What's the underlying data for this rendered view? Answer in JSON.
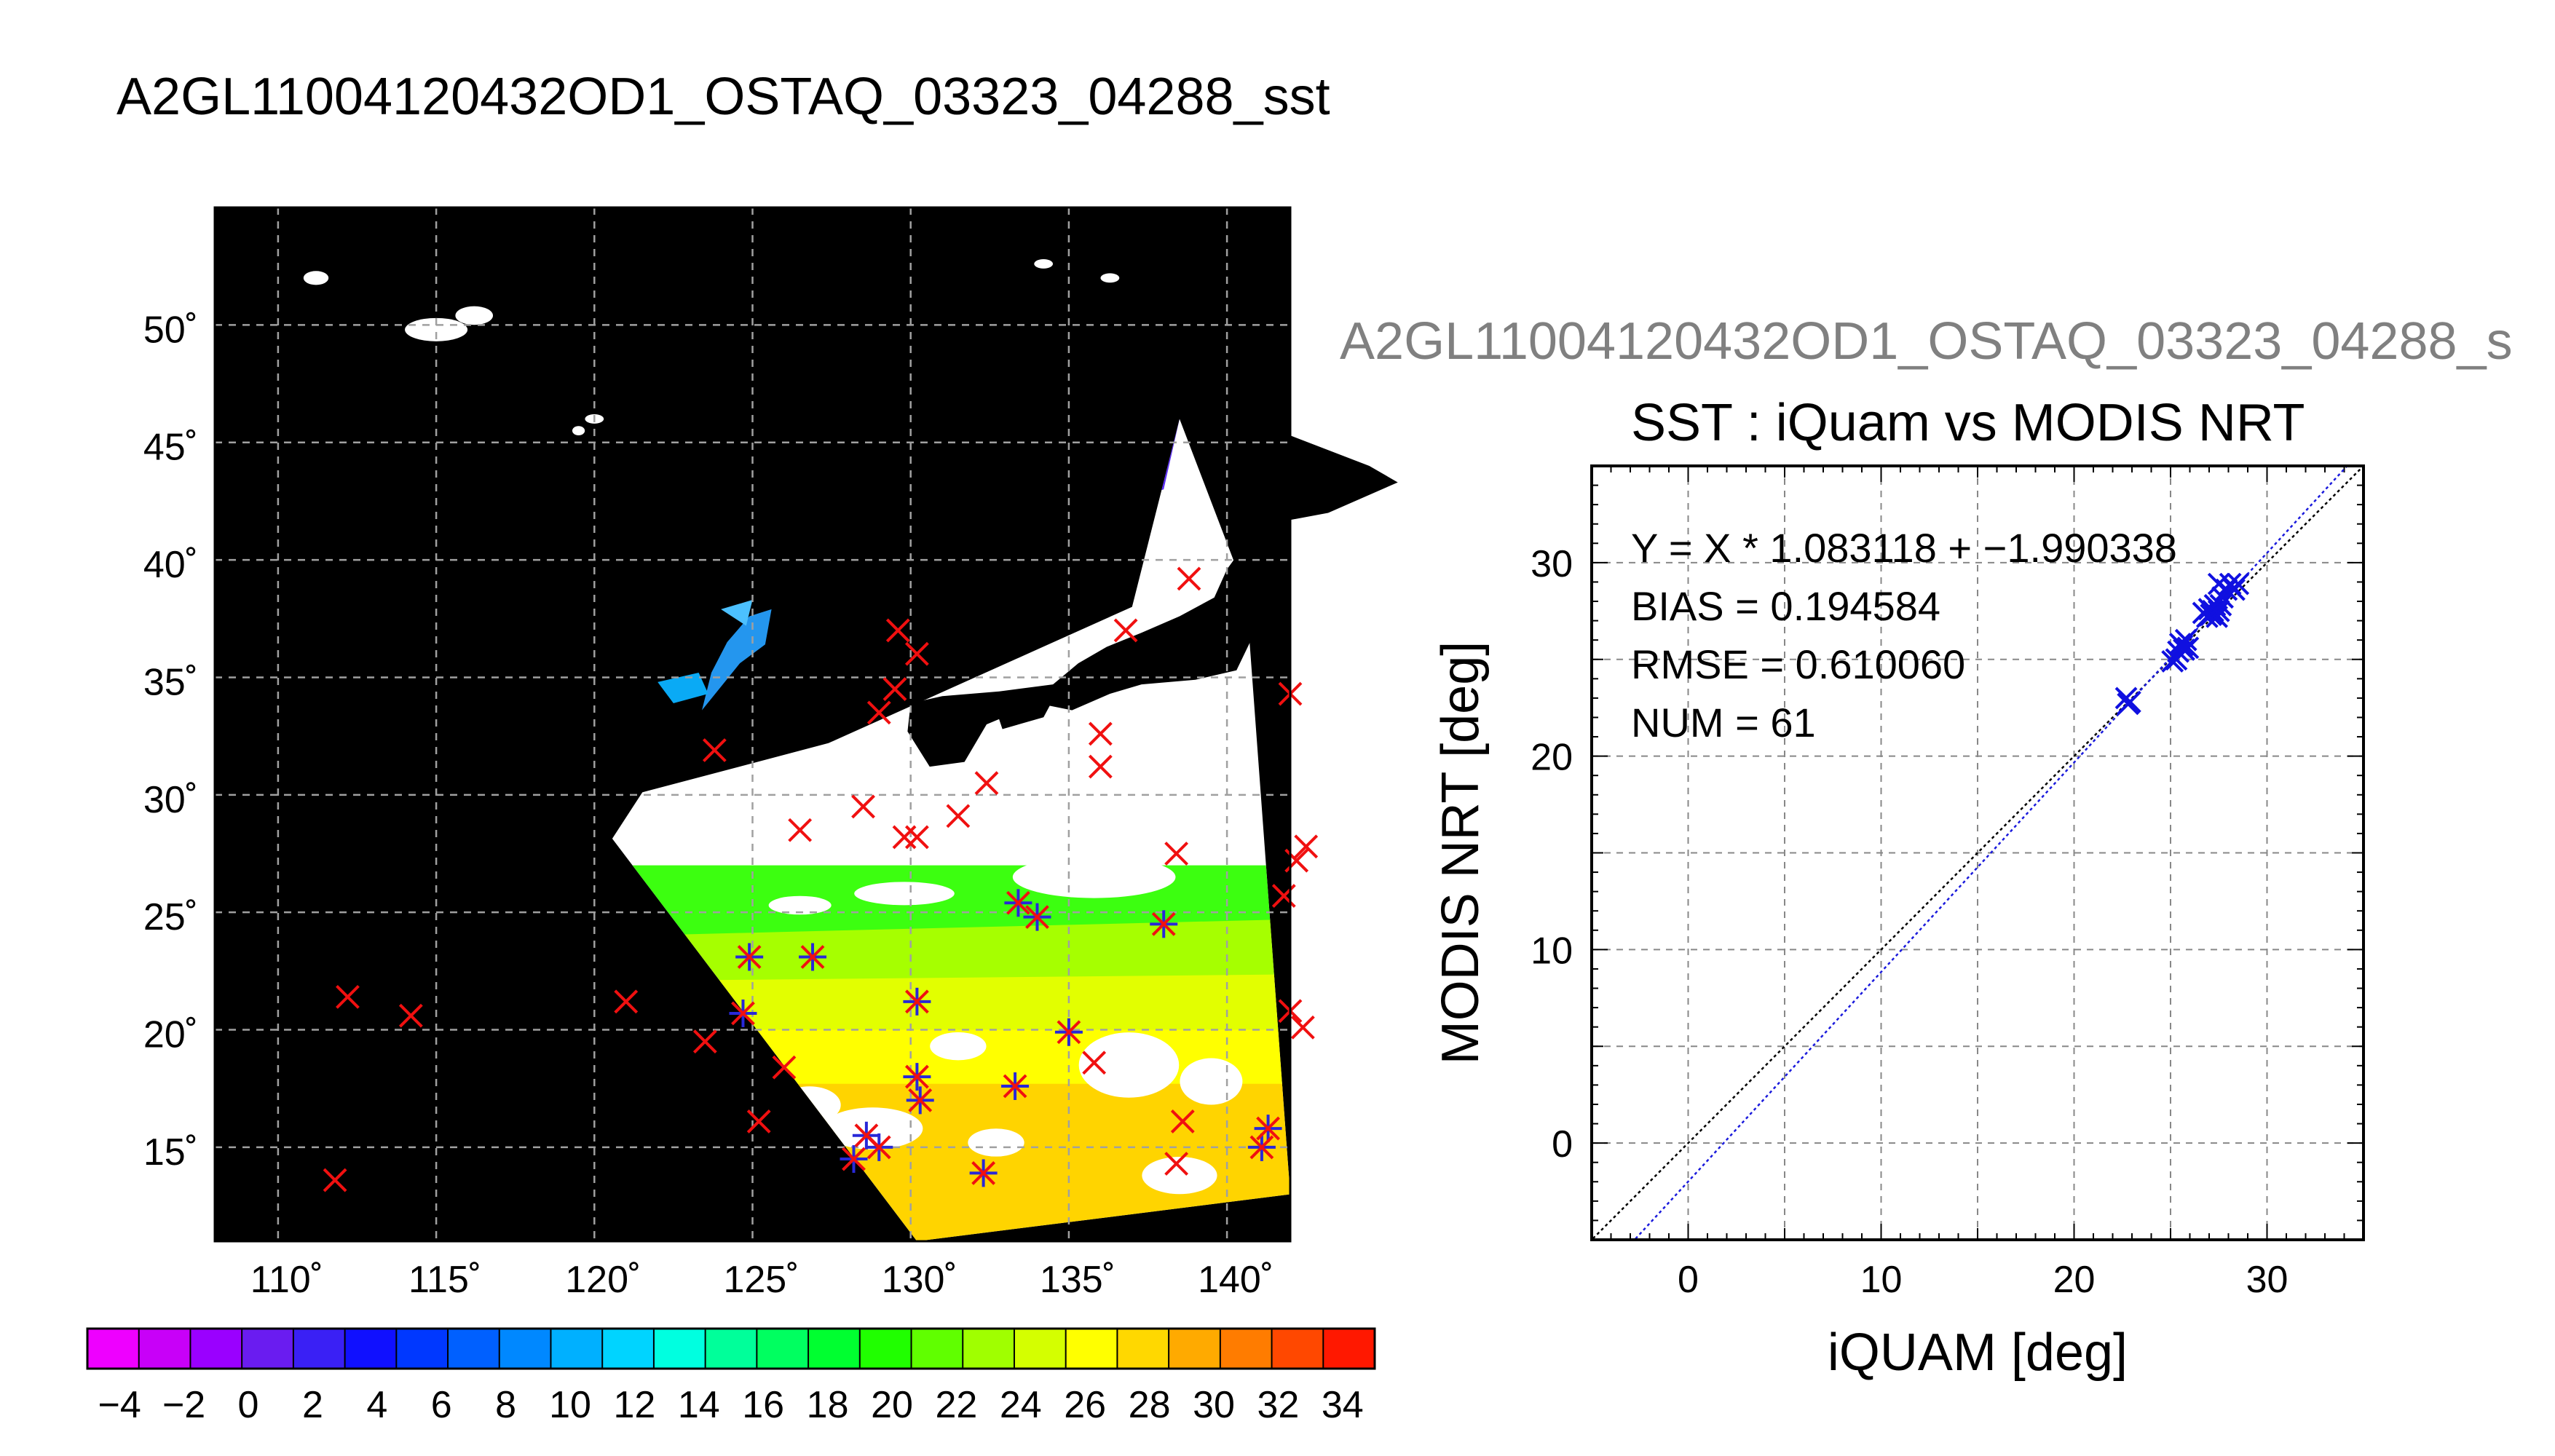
{
  "title": "A2GL11004120432OD1_OSTAQ_03323_04288_sst",
  "chart_data": [
    {
      "type": "map",
      "lon_range": [
        108,
        142
      ],
      "lat_range": [
        11,
        55
      ],
      "lon_ticks": [
        110,
        115,
        120,
        125,
        130,
        135,
        140
      ],
      "lat_ticks": [
        15,
        20,
        25,
        30,
        35,
        40,
        45,
        50
      ],
      "lon_tick_labels": [
        "110˚",
        "115˚",
        "120˚",
        "125˚",
        "130˚",
        "135˚",
        "140˚"
      ],
      "lat_tick_labels": [
        "15˚",
        "20˚",
        "25˚",
        "30˚",
        "35˚",
        "40˚",
        "45˚",
        "50˚"
      ],
      "grid": true,
      "colorbar": {
        "min": -5,
        "max": 35,
        "step": 2,
        "tick_labels": [
          "−4",
          "−2",
          "0",
          "2",
          "4",
          "6",
          "8",
          "10",
          "12",
          "14",
          "16",
          "18",
          "20",
          "22",
          "24",
          "26",
          "28",
          "30",
          "32",
          "34"
        ],
        "colors": [
          "#ee00ff",
          "#c800f8",
          "#9a00ff",
          "#6a1cf0",
          "#3a20f5",
          "#1010ff",
          "#0038ff",
          "#0060ff",
          "#0088ff",
          "#00b0ff",
          "#00d4ff",
          "#00ffe0",
          "#00ff9a",
          "#00ff60",
          "#00ff30",
          "#20ff00",
          "#60ff00",
          "#a0ff00",
          "#d4ff00",
          "#ffff00",
          "#ffd800",
          "#ffaa00",
          "#ff7c00",
          "#ff4800",
          "#ff1800"
        ]
      },
      "matchups_red_x": [
        [
          111.8,
          13.6
        ],
        [
          112.2,
          21.4
        ],
        [
          114.2,
          20.6
        ],
        [
          121.0,
          21.2
        ],
        [
          123.5,
          19.5
        ],
        [
          123.8,
          31.9
        ],
        [
          124.7,
          20.7
        ],
        [
          124.9,
          23.1
        ],
        [
          125.2,
          16.1
        ],
        [
          126.0,
          18.4
        ],
        [
          126.5,
          28.5
        ],
        [
          126.9,
          23.1
        ],
        [
          128.2,
          14.5
        ],
        [
          128.5,
          29.5
        ],
        [
          128.6,
          15.5
        ],
        [
          129.0,
          33.5
        ],
        [
          129.0,
          15.0
        ],
        [
          129.5,
          34.5
        ],
        [
          129.6,
          37.0
        ],
        [
          129.8,
          28.2
        ],
        [
          130.2,
          36.0
        ],
        [
          130.2,
          21.2
        ],
        [
          130.2,
          28.2
        ],
        [
          130.2,
          18.0
        ],
        [
          130.3,
          17.0
        ],
        [
          131.5,
          29.1
        ],
        [
          132.3,
          13.9
        ],
        [
          132.4,
          30.5
        ],
        [
          133.3,
          17.6
        ],
        [
          133.4,
          25.4
        ],
        [
          134.0,
          24.8
        ],
        [
          135.0,
          19.9
        ],
        [
          135.8,
          18.6
        ],
        [
          136.0,
          32.6
        ],
        [
          136.0,
          31.2
        ],
        [
          136.8,
          37.0
        ],
        [
          138.0,
          24.5
        ],
        [
          138.4,
          27.5
        ],
        [
          138.4,
          14.3
        ],
        [
          138.6,
          16.1
        ],
        [
          138.8,
          39.2
        ],
        [
          141.1,
          15.0
        ],
        [
          141.3,
          15.8
        ],
        [
          141.8,
          25.7
        ],
        [
          142.0,
          34.3
        ],
        [
          142.0,
          20.8
        ],
        [
          142.2,
          27.2
        ],
        [
          142.4,
          20.1
        ],
        [
          142.5,
          27.8
        ]
      ],
      "matchups_blue_star": [
        [
          124.9,
          23.1
        ],
        [
          124.7,
          20.7
        ],
        [
          126.9,
          23.1
        ],
        [
          128.2,
          14.5
        ],
        [
          128.6,
          15.5
        ],
        [
          129.0,
          15.0
        ],
        [
          130.2,
          21.2
        ],
        [
          130.2,
          18.0
        ],
        [
          130.3,
          17.0
        ],
        [
          132.3,
          13.9
        ],
        [
          133.3,
          17.6
        ],
        [
          133.4,
          25.4
        ],
        [
          134.0,
          24.8
        ],
        [
          135.0,
          19.9
        ],
        [
          138.0,
          24.5
        ],
        [
          141.1,
          15.0
        ],
        [
          141.3,
          15.8
        ]
      ]
    },
    {
      "type": "scatter",
      "subtitle": "A2GL11004120432OD1_OSTAQ_03323_04288_s",
      "title": "SST : iQuam vs MODIS NRT",
      "xlabel": "iQUAM [deg]",
      "ylabel": "MODIS NRT [deg]",
      "xlim": [
        -5,
        35
      ],
      "ylim": [
        -5,
        35
      ],
      "xticks": [
        0,
        10,
        20,
        30
      ],
      "yticks": [
        0,
        10,
        20,
        30
      ],
      "grid": true,
      "annotations": [
        "Y = X * 1.083118 + −1.990338",
        "BIAS = 0.194584",
        "RMSE = 0.610060",
        "NUM = 61"
      ],
      "fit": {
        "slope": 1.083118,
        "intercept": -1.990338
      },
      "one_to_one": true,
      "points": [
        [
          22.7,
          23.0
        ],
        [
          22.8,
          22.7
        ],
        [
          22.9,
          22.8
        ],
        [
          25.1,
          24.9
        ],
        [
          25.3,
          25.0
        ],
        [
          25.4,
          25.4
        ],
        [
          25.5,
          25.8
        ],
        [
          25.6,
          25.7
        ],
        [
          25.7,
          25.5
        ],
        [
          25.8,
          26.0
        ],
        [
          25.9,
          25.6
        ],
        [
          26.7,
          27.4
        ],
        [
          26.9,
          27.2
        ],
        [
          27.0,
          27.6
        ],
        [
          27.1,
          27.3
        ],
        [
          27.2,
          27.5
        ],
        [
          27.3,
          27.8
        ],
        [
          27.4,
          27.2
        ],
        [
          27.5,
          27.5
        ],
        [
          27.6,
          27.8
        ],
        [
          27.7,
          28.2
        ],
        [
          27.5,
          28.9
        ],
        [
          27.9,
          28.6
        ],
        [
          28.1,
          28.9
        ],
        [
          28.3,
          28.6
        ],
        [
          28.5,
          28.9
        ]
      ]
    }
  ]
}
